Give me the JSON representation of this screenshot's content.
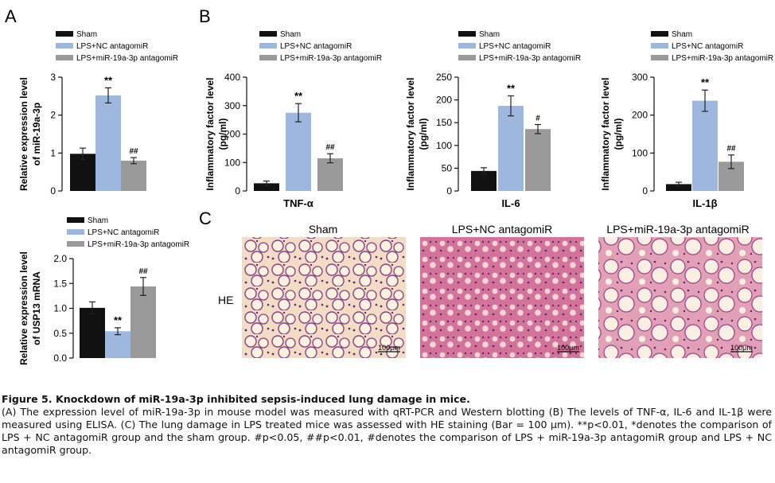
{
  "panel_letters": {
    "a": "A",
    "b": "B",
    "c": "C"
  },
  "legend_labels": [
    "Sham",
    "LPS+NC antagomiR",
    "LPS+miR-19a-3p antagomiR"
  ],
  "colors": {
    "sham": "#111111",
    "nc": "#9db7df",
    "mir": "#9a9a9a"
  },
  "chart_data": [
    {
      "id": "a1",
      "type": "bar",
      "categories": [
        "Sham",
        "LPS+NC antagomiR",
        "LPS+miR-19a-3p antagomiR"
      ],
      "values": [
        0.98,
        2.52,
        0.8
      ],
      "errors": [
        0.15,
        0.2,
        0.08
      ],
      "annotations": [
        "",
        "**",
        "##"
      ],
      "ylabel_lines": [
        "Relative expression level",
        "of miR-19a-3p"
      ],
      "xlabel": "",
      "ylim": [
        0,
        3
      ],
      "yticks": [
        "0",
        "1",
        "2",
        "3"
      ],
      "ytick_values": [
        0,
        1,
        2,
        3
      ],
      "legend": "top-left"
    },
    {
      "id": "a2",
      "type": "bar",
      "categories": [
        "Sham",
        "LPS+NC antagomiR",
        "LPS+miR-19a-3p antagomiR"
      ],
      "values": [
        1.01,
        0.54,
        1.44
      ],
      "errors": [
        0.12,
        0.07,
        0.18
      ],
      "annotations": [
        "",
        "**",
        "##"
      ],
      "ylabel_lines": [
        "Relative expression level",
        "of USP13 mRNA"
      ],
      "xlabel": "",
      "ylim": [
        0,
        2.0
      ],
      "yticks": [
        "0.0",
        "0.5",
        "1.0",
        "1.5",
        "2.0"
      ],
      "ytick_values": [
        0,
        0.5,
        1.0,
        1.5,
        2.0
      ],
      "legend": "top-left"
    },
    {
      "id": "b1",
      "type": "bar",
      "categories": [
        "Sham",
        "LPS+NC antagomiR",
        "LPS+miR-19a-3p antagomiR"
      ],
      "values": [
        27,
        275,
        115
      ],
      "errors": [
        8,
        32,
        16
      ],
      "annotations": [
        "",
        "**",
        "##"
      ],
      "ylabel_lines": [
        "Inflammatory factor level",
        "(pg/ml)"
      ],
      "xlabel": "TNF-α",
      "ylim": [
        0,
        400
      ],
      "yticks": [
        "0",
        "100",
        "200",
        "300",
        "400"
      ],
      "ytick_values": [
        0,
        100,
        200,
        300,
        400
      ],
      "legend": "top-left"
    },
    {
      "id": "b2",
      "type": "bar",
      "categories": [
        "Sham",
        "LPS+NC antagomiR",
        "LPS+miR-19a-3p antagomiR"
      ],
      "values": [
        44,
        187,
        136
      ],
      "errors": [
        7,
        22,
        10
      ],
      "annotations": [
        "",
        "**",
        "#"
      ],
      "ylabel_lines": [
        "Inflammatory factor level",
        "(pg/ml)"
      ],
      "xlabel": "IL-6",
      "ylim": [
        0,
        250
      ],
      "yticks": [
        "0",
        "50",
        "100",
        "150",
        "200",
        "250"
      ],
      "ytick_values": [
        0,
        50,
        100,
        150,
        200,
        250
      ],
      "legend": "top-left"
    },
    {
      "id": "b3",
      "type": "bar",
      "categories": [
        "Sham",
        "LPS+NC antagomiR",
        "LPS+miR-19a-3p antagomiR"
      ],
      "values": [
        18,
        238,
        77
      ],
      "errors": [
        5,
        28,
        18
      ],
      "annotations": [
        "",
        "**",
        "##"
      ],
      "ylabel_lines": [
        "Inflammatory factor level",
        "(pg/ml)"
      ],
      "xlabel": "IL-1β",
      "ylim": [
        0,
        300
      ],
      "yticks": [
        "0",
        "100",
        "200",
        "300"
      ],
      "ytick_values": [
        0,
        100,
        200,
        300
      ],
      "legend": "top-left"
    }
  ],
  "he": {
    "row_label": "HE",
    "titles": [
      "Sham",
      "LPS+NC antagomiR",
      "LPS+miR-19a-3p antagomiR"
    ],
    "scale_bar": "100μm"
  },
  "caption": {
    "title": "Figure 5. Knockdown of miR-19a-3p inhibited sepsis-induced lung damage in mice.",
    "body": "(A) The expression level of miR-19a-3p in mouse model was measured with qRT-PCR and Western blotting (B) The levels of TNF-α, IL-6 and IL-1β were measured using ELISA. (C) The lung damage in LPS treated mice was assessed with HE staining (Bar = 100 μm). **p<0.01, *denotes the comparison of LPS + NC antagomiR group and the sham group. #p<0.05, ##p<0.01, #denotes the comparison of LPS + miR-19a-3p antagomiR group and LPS + NC antagomiR group."
  }
}
